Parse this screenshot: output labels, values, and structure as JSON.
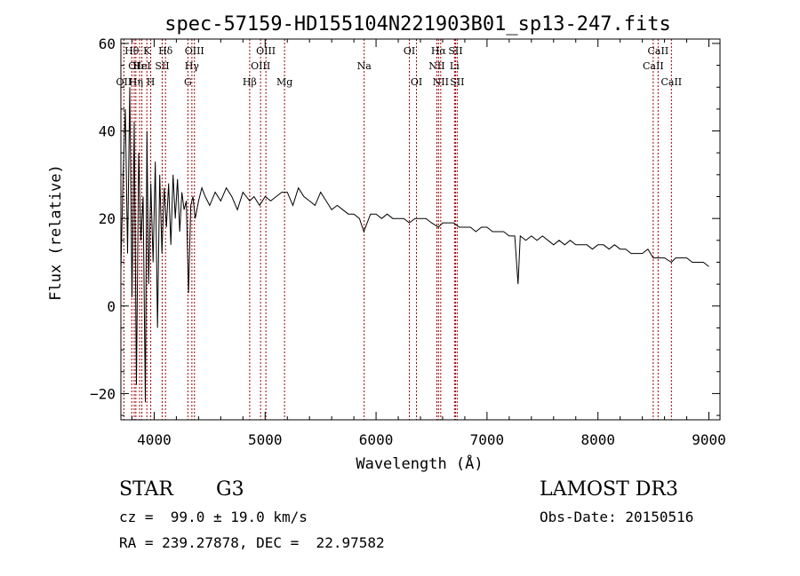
{
  "chart_data": {
    "type": "line",
    "title": "spec-57159-HD155104N221903B01_sp13-247.fits",
    "xlabel": "Wavelength (Å)",
    "ylabel": "Flux (relative)",
    "xlim": [
      3700,
      9100
    ],
    "ylim": [
      -26,
      61
    ],
    "xticks": [
      "4000",
      "5000",
      "6000",
      "7000",
      "8000",
      "9000"
    ],
    "yticks": [
      "60",
      "40",
      "20",
      "0",
      "−20"
    ],
    "grid": false,
    "series": [
      {
        "x": [
          3700,
          3720,
          3740,
          3760,
          3780,
          3800,
          3820,
          3840,
          3860,
          3880,
          3900,
          3920,
          3935,
          3950,
          3970,
          3990,
          4010,
          4030,
          4050,
          4070,
          4090,
          4110,
          4130,
          4150,
          4170,
          4190,
          4210,
          4230,
          4250,
          4270,
          4290,
          4310,
          4330,
          4350,
          4370,
          4400,
          4430,
          4460,
          4500,
          4550,
          4600,
          4650,
          4700,
          4750,
          4800,
          4861,
          4900,
          4950,
          5000,
          5050,
          5100,
          5150,
          5200,
          5250,
          5300,
          5350,
          5400,
          5450,
          5500,
          5550,
          5600,
          5650,
          5700,
          5750,
          5800,
          5850,
          5890,
          5950,
          6000,
          6050,
          6100,
          6150,
          6200,
          6250,
          6300,
          6350,
          6400,
          6450,
          6500,
          6563,
          6600,
          6650,
          6700,
          6750,
          6800,
          6850,
          6900,
          6950,
          7000,
          7050,
          7100,
          7150,
          7200,
          7250,
          7280,
          7300,
          7350,
          7400,
          7450,
          7500,
          7550,
          7600,
          7650,
          7700,
          7750,
          7800,
          7850,
          7900,
          7950,
          8000,
          8050,
          8100,
          8150,
          8200,
          8250,
          8300,
          8350,
          8400,
          8450,
          8498,
          8542,
          8600,
          8662,
          8700,
          8750,
          8800,
          8850,
          8900,
          8950,
          9000
        ],
        "y": [
          8,
          30,
          45,
          12,
          50,
          2,
          42,
          -18,
          35,
          15,
          25,
          -22,
          40,
          5,
          28,
          10,
          33,
          -5,
          30,
          12,
          27,
          18,
          28,
          14,
          30,
          20,
          29,
          17,
          26,
          22,
          24,
          3,
          23,
          25,
          20,
          24,
          27,
          25,
          23,
          26,
          24,
          27,
          25,
          22,
          26,
          24,
          25,
          23,
          25,
          24,
          25,
          26,
          26,
          23,
          27,
          25,
          24,
          23,
          26,
          24,
          22,
          23,
          22,
          21,
          21,
          20,
          17,
          21,
          21,
          20,
          21,
          20,
          20,
          20,
          19,
          20,
          20,
          20,
          19,
          18,
          19,
          19,
          19,
          18,
          18,
          18,
          17,
          18,
          18,
          17,
          17,
          17,
          16,
          16,
          5,
          16,
          15,
          16,
          15,
          16,
          15,
          14,
          15,
          14,
          15,
          14,
          14,
          14,
          13,
          14,
          14,
          13,
          14,
          13,
          13,
          12,
          12,
          12,
          13,
          11,
          11,
          11,
          10,
          11,
          11,
          11,
          10,
          10,
          10,
          9
        ]
      }
    ],
    "line_markers": [
      {
        "x": 3727,
        "label": "OII",
        "row": 2
      },
      {
        "x": 3798,
        "label": "Hθ",
        "row": 0
      },
      {
        "x": 3820,
        "label": "OI",
        "row": 1
      },
      {
        "x": 3835,
        "label": "Hη",
        "row": 2
      },
      {
        "x": 3869,
        "label": "Hε",
        "row": 1
      },
      {
        "x": 3889,
        "label": "HeI",
        "row": 1
      },
      {
        "x": 3934,
        "label": "K",
        "row": 0
      },
      {
        "x": 3969,
        "label": "H",
        "row": 2
      },
      {
        "x": 4072,
        "label": "SII",
        "row": 1
      },
      {
        "x": 4102,
        "label": "Hδ",
        "row": 0
      },
      {
        "x": 4304,
        "label": "G",
        "row": 2
      },
      {
        "x": 4340,
        "label": "Hγ",
        "row": 1
      },
      {
        "x": 4363,
        "label": "OIII",
        "row": 0
      },
      {
        "x": 4861,
        "label": "Hβ",
        "row": 2
      },
      {
        "x": 4959,
        "label": "OIII",
        "row": 1
      },
      {
        "x": 5007,
        "label": "OIII",
        "row": 0
      },
      {
        "x": 5175,
        "label": "Mg",
        "row": 2
      },
      {
        "x": 5893,
        "label": "Na",
        "row": 1
      },
      {
        "x": 6300,
        "label": "OI",
        "row": 0
      },
      {
        "x": 6364,
        "label": "OI",
        "row": 2
      },
      {
        "x": 6548,
        "label": "NII",
        "row": 1
      },
      {
        "x": 6563,
        "label": "Hα",
        "row": 0
      },
      {
        "x": 6583,
        "label": "NII",
        "row": 2
      },
      {
        "x": 6707,
        "label": "Li",
        "row": 1
      },
      {
        "x": 6716,
        "label": "SII",
        "row": 0
      },
      {
        "x": 6731,
        "label": "SII",
        "row": 2
      },
      {
        "x": 8498,
        "label": "CaII",
        "row": 1
      },
      {
        "x": 8542,
        "label": "CaII",
        "row": 0
      },
      {
        "x": 8662,
        "label": "CaII",
        "row": 2
      }
    ],
    "marker_color": "#a00000"
  },
  "info": {
    "object_class": "STAR",
    "subclass": "G3",
    "survey": "LAMOST DR3",
    "redshift": "cz =  99.0 ± 19.0 km/s",
    "obs_date": "Obs-Date: 20150516",
    "coords": "RA = 239.27878, DEC =  22.97582"
  }
}
